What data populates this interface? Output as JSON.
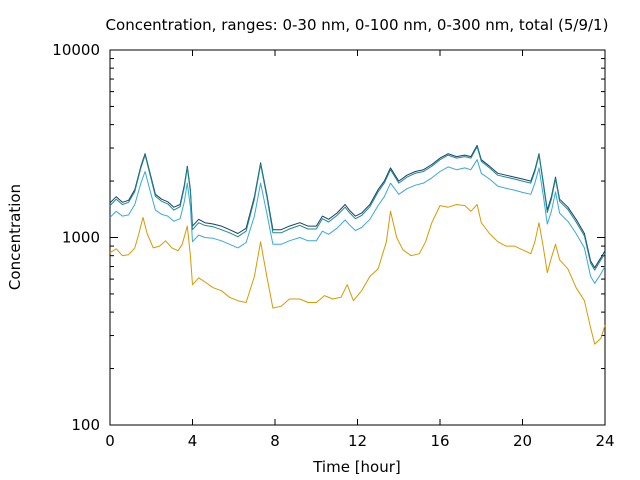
{
  "chart_data": {
    "type": "line",
    "title": "Concentration, ranges: 0-30 nm, 0-100 nm, 0-300 nm, total (5/9/1)",
    "xlabel": "Time [hour]",
    "ylabel": "Concentration",
    "xlim": [
      0,
      24
    ],
    "ylim": [
      100,
      10000
    ],
    "yscale": "log",
    "grid": false,
    "legend": false,
    "x_ticks": [
      "0",
      "4",
      "8",
      "12",
      "16",
      "20",
      "24"
    ],
    "y_ticks": [
      "100",
      "1000",
      "10000"
    ],
    "series": [
      {
        "color": "#1a3d6e",
        "points": [
          [
            0,
            1530
          ],
          [
            0.3,
            1650
          ],
          [
            0.6,
            1540
          ],
          [
            0.9,
            1580
          ],
          [
            1.2,
            1800
          ],
          [
            1.5,
            2400
          ],
          [
            1.7,
            2800
          ],
          [
            1.9,
            2300
          ],
          [
            2.2,
            1700
          ],
          [
            2.5,
            1600
          ],
          [
            2.8,
            1550
          ],
          [
            3.1,
            1450
          ],
          [
            3.4,
            1500
          ],
          [
            3.6,
            1900
          ],
          [
            3.75,
            2400
          ],
          [
            3.9,
            1800
          ],
          [
            4.0,
            1150
          ],
          [
            4.3,
            1250
          ],
          [
            4.6,
            1200
          ],
          [
            5.0,
            1180
          ],
          [
            5.4,
            1150
          ],
          [
            5.8,
            1100
          ],
          [
            6.2,
            1050
          ],
          [
            6.6,
            1120
          ],
          [
            7.0,
            1650
          ],
          [
            7.3,
            2500
          ],
          [
            7.6,
            1700
          ],
          [
            7.9,
            1100
          ],
          [
            8.3,
            1100
          ],
          [
            8.7,
            1150
          ],
          [
            9.2,
            1200
          ],
          [
            9.6,
            1150
          ],
          [
            10.0,
            1150
          ],
          [
            10.3,
            1300
          ],
          [
            10.6,
            1250
          ],
          [
            11.0,
            1350
          ],
          [
            11.4,
            1500
          ],
          [
            11.6,
            1400
          ],
          [
            11.9,
            1300
          ],
          [
            12.2,
            1350
          ],
          [
            12.6,
            1500
          ],
          [
            13.0,
            1800
          ],
          [
            13.3,
            2000
          ],
          [
            13.6,
            2350
          ],
          [
            14.0,
            2000
          ],
          [
            14.4,
            2150
          ],
          [
            14.8,
            2250
          ],
          [
            15.2,
            2300
          ],
          [
            15.6,
            2450
          ],
          [
            16.0,
            2650
          ],
          [
            16.4,
            2800
          ],
          [
            16.8,
            2700
          ],
          [
            17.2,
            2750
          ],
          [
            17.5,
            2700
          ],
          [
            17.8,
            3100
          ],
          [
            18.0,
            2600
          ],
          [
            18.4,
            2400
          ],
          [
            18.8,
            2200
          ],
          [
            19.2,
            2150
          ],
          [
            19.6,
            2100
          ],
          [
            20.0,
            2050
          ],
          [
            20.4,
            2000
          ],
          [
            20.6,
            2300
          ],
          [
            20.8,
            2800
          ],
          [
            21.0,
            2000
          ],
          [
            21.2,
            1400
          ],
          [
            21.4,
            1650
          ],
          [
            21.6,
            2100
          ],
          [
            21.8,
            1600
          ],
          [
            22.2,
            1450
          ],
          [
            22.6,
            1250
          ],
          [
            23.0,
            1050
          ],
          [
            23.3,
            750
          ],
          [
            23.5,
            690
          ],
          [
            23.8,
            780
          ],
          [
            24.0,
            850
          ]
        ]
      },
      {
        "color": "#1a8a8a",
        "points": [
          [
            0,
            1480
          ],
          [
            0.3,
            1600
          ],
          [
            0.6,
            1500
          ],
          [
            0.9,
            1540
          ],
          [
            1.2,
            1760
          ],
          [
            1.5,
            2350
          ],
          [
            1.7,
            2750
          ],
          [
            1.9,
            2250
          ],
          [
            2.2,
            1660
          ],
          [
            2.5,
            1560
          ],
          [
            2.8,
            1510
          ],
          [
            3.1,
            1400
          ],
          [
            3.4,
            1460
          ],
          [
            3.6,
            1850
          ],
          [
            3.75,
            2350
          ],
          [
            3.9,
            1750
          ],
          [
            4.0,
            1100
          ],
          [
            4.3,
            1200
          ],
          [
            4.6,
            1160
          ],
          [
            5.0,
            1140
          ],
          [
            5.4,
            1100
          ],
          [
            5.8,
            1060
          ],
          [
            6.2,
            1010
          ],
          [
            6.6,
            1080
          ],
          [
            7.0,
            1600
          ],
          [
            7.3,
            2450
          ],
          [
            7.6,
            1650
          ],
          [
            7.9,
            1060
          ],
          [
            8.3,
            1060
          ],
          [
            8.7,
            1110
          ],
          [
            9.2,
            1160
          ],
          [
            9.6,
            1110
          ],
          [
            10.0,
            1110
          ],
          [
            10.3,
            1260
          ],
          [
            10.6,
            1210
          ],
          [
            11.0,
            1310
          ],
          [
            11.4,
            1450
          ],
          [
            11.6,
            1360
          ],
          [
            11.9,
            1260
          ],
          [
            12.2,
            1310
          ],
          [
            12.6,
            1460
          ],
          [
            13.0,
            1750
          ],
          [
            13.3,
            1950
          ],
          [
            13.6,
            2300
          ],
          [
            14.0,
            1950
          ],
          [
            14.4,
            2100
          ],
          [
            14.8,
            2200
          ],
          [
            15.2,
            2250
          ],
          [
            15.6,
            2400
          ],
          [
            16.0,
            2600
          ],
          [
            16.4,
            2750
          ],
          [
            16.8,
            2650
          ],
          [
            17.2,
            2700
          ],
          [
            17.5,
            2650
          ],
          [
            17.8,
            3050
          ],
          [
            18.0,
            2550
          ],
          [
            18.4,
            2350
          ],
          [
            18.8,
            2150
          ],
          [
            19.2,
            2100
          ],
          [
            19.6,
            2050
          ],
          [
            20.0,
            2000
          ],
          [
            20.4,
            1950
          ],
          [
            20.6,
            2250
          ],
          [
            20.8,
            2750
          ],
          [
            21.0,
            1950
          ],
          [
            21.2,
            1360
          ],
          [
            21.4,
            1600
          ],
          [
            21.6,
            2050
          ],
          [
            21.8,
            1560
          ],
          [
            22.2,
            1410
          ],
          [
            22.6,
            1210
          ],
          [
            23.0,
            1020
          ],
          [
            23.3,
            730
          ],
          [
            23.5,
            670
          ],
          [
            23.8,
            760
          ],
          [
            24.0,
            820
          ]
        ]
      },
      {
        "color": "#3aa8d8",
        "points": [
          [
            0,
            1280
          ],
          [
            0.3,
            1380
          ],
          [
            0.6,
            1300
          ],
          [
            0.9,
            1320
          ],
          [
            1.2,
            1500
          ],
          [
            1.5,
            1950
          ],
          [
            1.7,
            2250
          ],
          [
            1.9,
            1850
          ],
          [
            2.2,
            1400
          ],
          [
            2.5,
            1330
          ],
          [
            2.8,
            1300
          ],
          [
            3.1,
            1220
          ],
          [
            3.4,
            1260
          ],
          [
            3.6,
            1550
          ],
          [
            3.75,
            1950
          ],
          [
            3.9,
            1450
          ],
          [
            4.0,
            950
          ],
          [
            4.3,
            1030
          ],
          [
            4.6,
            1000
          ],
          [
            5.0,
            990
          ],
          [
            5.4,
            960
          ],
          [
            5.8,
            920
          ],
          [
            6.2,
            880
          ],
          [
            6.6,
            940
          ],
          [
            7.0,
            1300
          ],
          [
            7.3,
            1950
          ],
          [
            7.6,
            1350
          ],
          [
            7.9,
            920
          ],
          [
            8.3,
            920
          ],
          [
            8.7,
            960
          ],
          [
            9.2,
            1000
          ],
          [
            9.6,
            960
          ],
          [
            10.0,
            960
          ],
          [
            10.3,
            1080
          ],
          [
            10.6,
            1040
          ],
          [
            11.0,
            1120
          ],
          [
            11.4,
            1240
          ],
          [
            11.6,
            1170
          ],
          [
            11.9,
            1090
          ],
          [
            12.2,
            1130
          ],
          [
            12.6,
            1250
          ],
          [
            13.0,
            1480
          ],
          [
            13.3,
            1650
          ],
          [
            13.6,
            1950
          ],
          [
            14.0,
            1700
          ],
          [
            14.4,
            1820
          ],
          [
            14.8,
            1900
          ],
          [
            15.2,
            1950
          ],
          [
            15.6,
            2080
          ],
          [
            16.0,
            2250
          ],
          [
            16.4,
            2380
          ],
          [
            16.8,
            2300
          ],
          [
            17.2,
            2350
          ],
          [
            17.5,
            2300
          ],
          [
            17.8,
            2600
          ],
          [
            18.0,
            2200
          ],
          [
            18.4,
            2050
          ],
          [
            18.8,
            1880
          ],
          [
            19.2,
            1830
          ],
          [
            19.6,
            1790
          ],
          [
            20.0,
            1740
          ],
          [
            20.4,
            1700
          ],
          [
            20.6,
            1950
          ],
          [
            20.8,
            2350
          ],
          [
            21.0,
            1700
          ],
          [
            21.2,
            1180
          ],
          [
            21.4,
            1380
          ],
          [
            21.6,
            1750
          ],
          [
            21.8,
            1350
          ],
          [
            22.2,
            1220
          ],
          [
            22.6,
            1050
          ],
          [
            23.0,
            880
          ],
          [
            23.3,
            620
          ],
          [
            23.5,
            570
          ],
          [
            23.8,
            640
          ],
          [
            24.0,
            700
          ]
        ]
      },
      {
        "color": "#d89a00",
        "points": [
          [
            0,
            830
          ],
          [
            0.3,
            870
          ],
          [
            0.6,
            800
          ],
          [
            0.9,
            810
          ],
          [
            1.2,
            880
          ],
          [
            1.4,
            1050
          ],
          [
            1.6,
            1280
          ],
          [
            1.8,
            1050
          ],
          [
            2.1,
            880
          ],
          [
            2.4,
            900
          ],
          [
            2.7,
            960
          ],
          [
            3.0,
            880
          ],
          [
            3.3,
            850
          ],
          [
            3.5,
            920
          ],
          [
            3.75,
            1150
          ],
          [
            3.9,
            800
          ],
          [
            4.0,
            560
          ],
          [
            4.3,
            610
          ],
          [
            4.6,
            580
          ],
          [
            5.0,
            540
          ],
          [
            5.4,
            520
          ],
          [
            5.8,
            480
          ],
          [
            6.2,
            460
          ],
          [
            6.6,
            450
          ],
          [
            7.0,
            620
          ],
          [
            7.3,
            950
          ],
          [
            7.6,
            620
          ],
          [
            7.9,
            420
          ],
          [
            8.3,
            430
          ],
          [
            8.7,
            470
          ],
          [
            9.2,
            470
          ],
          [
            9.6,
            450
          ],
          [
            10.0,
            450
          ],
          [
            10.4,
            490
          ],
          [
            10.8,
            470
          ],
          [
            11.2,
            480
          ],
          [
            11.5,
            560
          ],
          [
            11.8,
            460
          ],
          [
            12.2,
            520
          ],
          [
            12.6,
            620
          ],
          [
            13.0,
            680
          ],
          [
            13.4,
            950
          ],
          [
            13.6,
            1380
          ],
          [
            13.9,
            1000
          ],
          [
            14.2,
            860
          ],
          [
            14.6,
            800
          ],
          [
            15.0,
            820
          ],
          [
            15.3,
            950
          ],
          [
            15.6,
            1200
          ],
          [
            16.0,
            1480
          ],
          [
            16.4,
            1450
          ],
          [
            16.8,
            1500
          ],
          [
            17.2,
            1480
          ],
          [
            17.5,
            1380
          ],
          [
            17.8,
            1500
          ],
          [
            18.0,
            1200
          ],
          [
            18.4,
            1050
          ],
          [
            18.8,
            950
          ],
          [
            19.2,
            900
          ],
          [
            19.6,
            900
          ],
          [
            20.0,
            860
          ],
          [
            20.4,
            820
          ],
          [
            20.6,
            950
          ],
          [
            20.8,
            1200
          ],
          [
            21.0,
            900
          ],
          [
            21.2,
            650
          ],
          [
            21.4,
            780
          ],
          [
            21.6,
            920
          ],
          [
            21.8,
            760
          ],
          [
            22.2,
            680
          ],
          [
            22.6,
            540
          ],
          [
            23.0,
            460
          ],
          [
            23.3,
            330
          ],
          [
            23.5,
            270
          ],
          [
            23.8,
            290
          ],
          [
            24.0,
            340
          ]
        ]
      }
    ]
  }
}
